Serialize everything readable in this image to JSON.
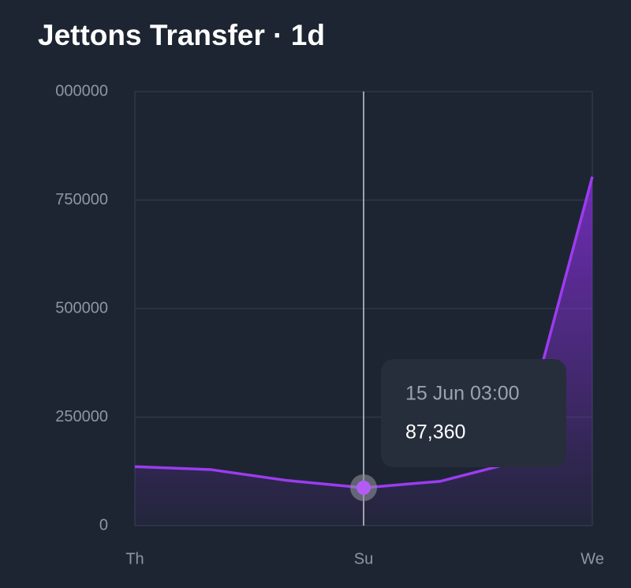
{
  "chart_data": {
    "type": "line",
    "title": "Jettons Transfer · 1d",
    "categories": [
      "Th",
      null,
      null,
      "Su",
      null,
      null,
      "We"
    ],
    "series": [
      {
        "color": "#9b3cf0",
        "values": [
          136000,
          129000,
          104000,
          87360,
          102000,
          147000,
          804000
        ]
      }
    ],
    "ylim": [
      0,
      1000000
    ],
    "yticks": [
      0,
      250000,
      500000,
      750000,
      {
        "value": 1000000,
        "label": "000000"
      }
    ],
    "grid": true,
    "tooltip": {
      "label": "15 Jun 03:00",
      "value": 87360,
      "value_label": "87,360"
    }
  }
}
